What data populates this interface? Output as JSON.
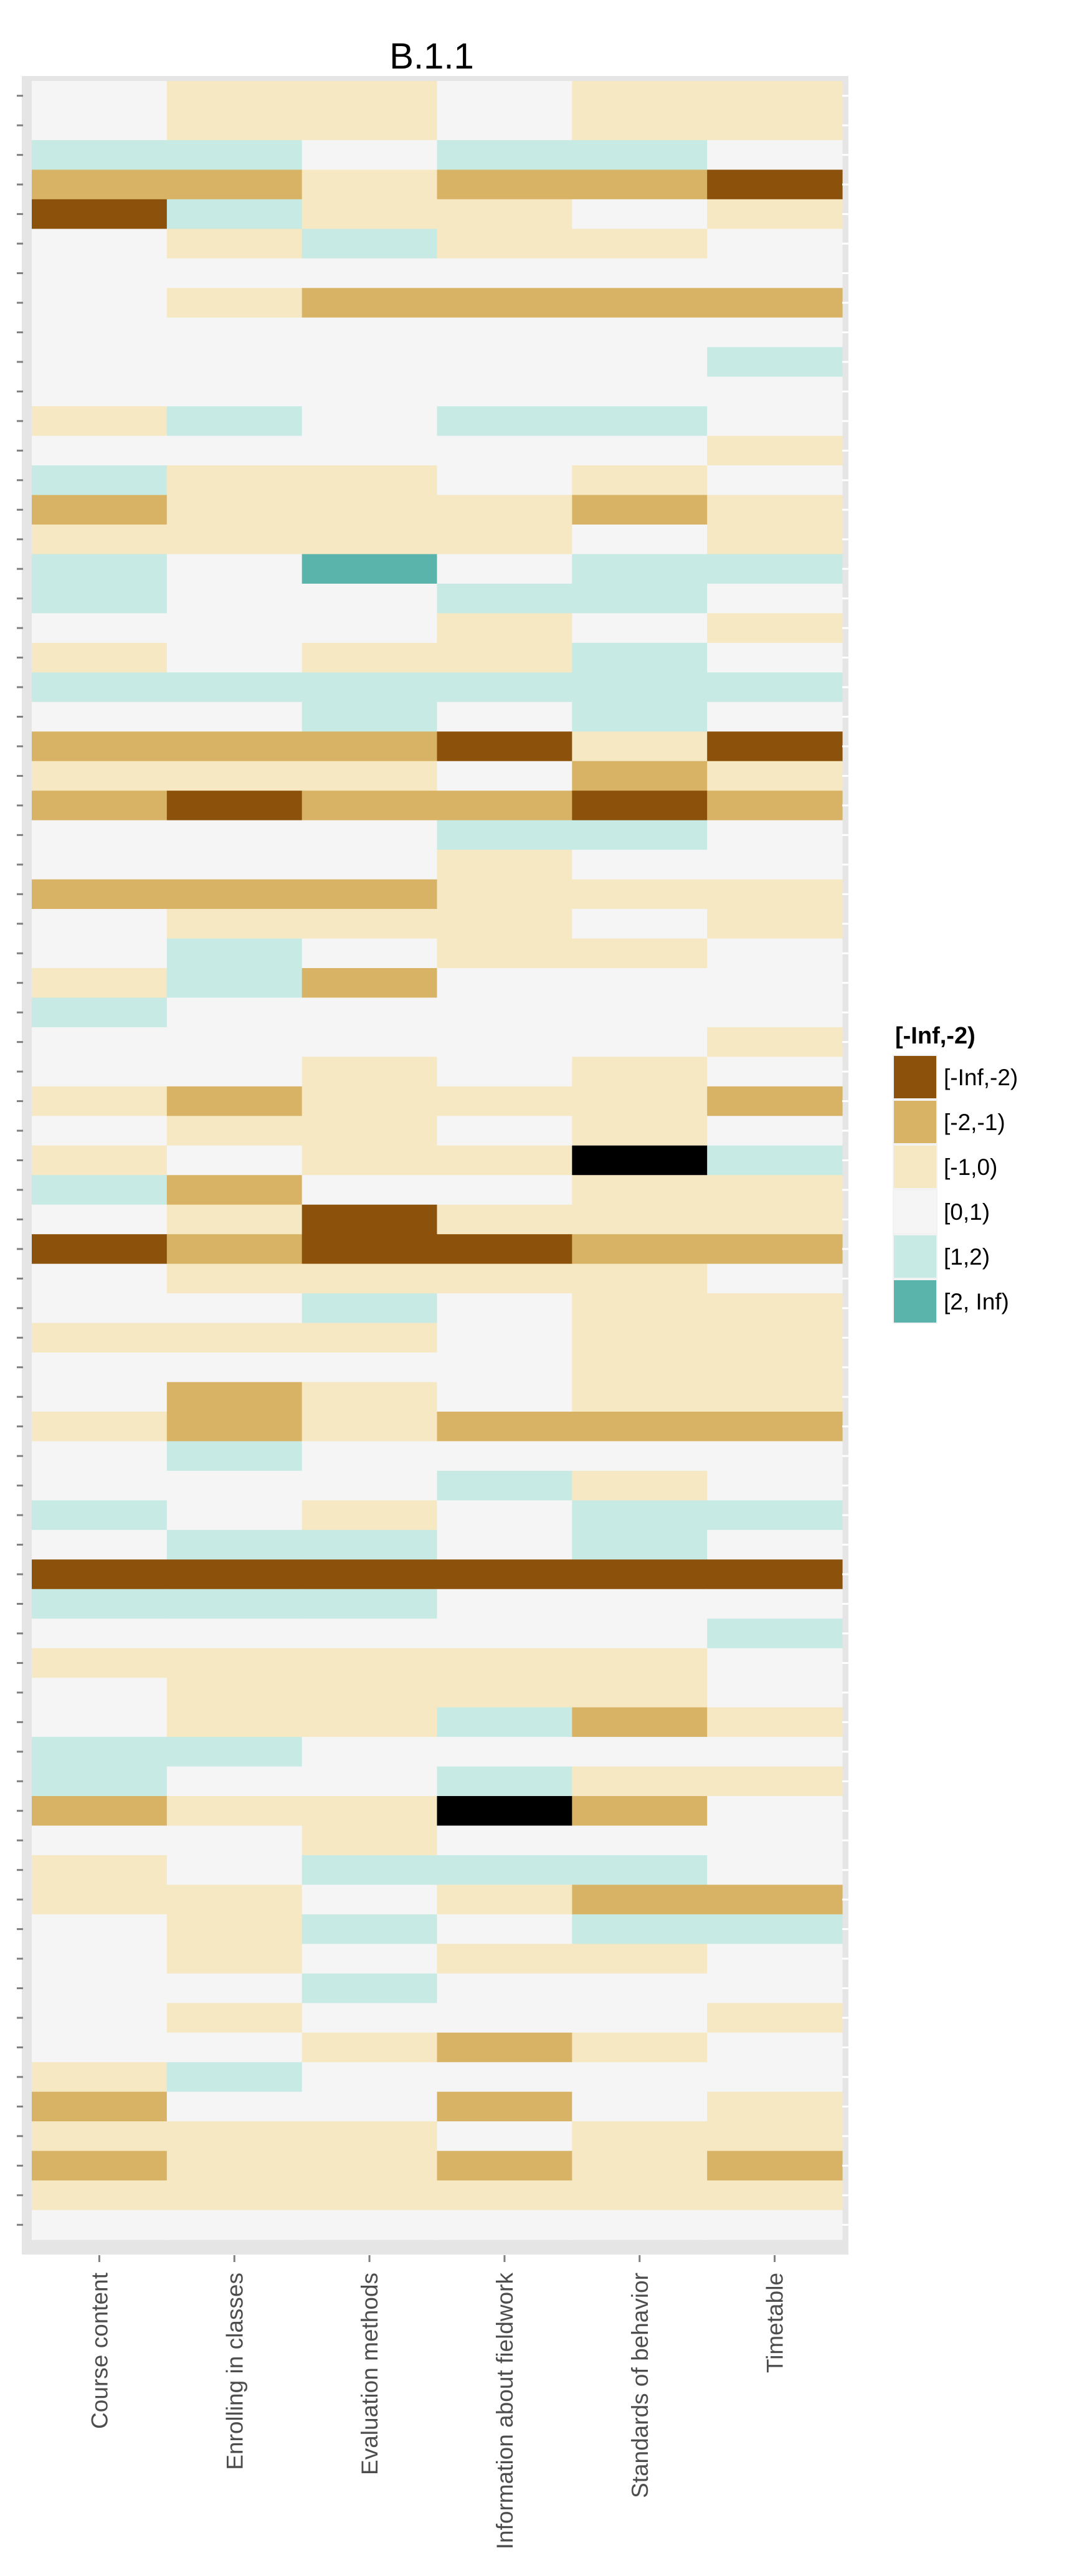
{
  "chart_data": {
    "type": "heatmap",
    "title": "B.1.1",
    "xlabel": "",
    "ylabel": "",
    "grid": true,
    "legend_position": "right",
    "categories": [
      "Course content",
      "Enrolling in classes",
      "Evaluation methods",
      "Information about fieldwork",
      "Standards of behavior",
      "Timetable"
    ],
    "bins": [
      "[-Inf,-2)",
      "[-2,-1)",
      "[-1,0)",
      "[0,1)",
      "[1,2)",
      "[2, Inf)"
    ],
    "bin_colors": [
      "#8c510a",
      "#d8b365",
      "#f6e8c3",
      "#f5f5f5",
      "#c7eae5",
      "#5ab4ac"
    ],
    "missing_color": "#000000",
    "legend": {
      "title": "[-Inf,-2)",
      "entries": [
        "[-Inf,-2)",
        "[-2,-1)",
        "[-1,0)",
        "[0,1)",
        "[1,2)",
        "[2, Inf)"
      ]
    },
    "rows": [
      [
        3,
        2,
        2,
        3,
        2,
        2
      ],
      [
        3,
        2,
        2,
        3,
        2,
        2
      ],
      [
        4,
        4,
        3,
        4,
        4,
        3
      ],
      [
        1,
        1,
        2,
        1,
        1,
        0
      ],
      [
        0,
        4,
        2,
        2,
        3,
        2
      ],
      [
        3,
        2,
        4,
        2,
        2,
        3
      ],
      [
        3,
        3,
        3,
        3,
        3,
        3
      ],
      [
        3,
        2,
        1,
        1,
        1,
        1
      ],
      [
        3,
        3,
        3,
        3,
        3,
        3
      ],
      [
        3,
        3,
        3,
        3,
        3,
        4
      ],
      [
        3,
        3,
        3,
        3,
        3,
        3
      ],
      [
        2,
        4,
        3,
        4,
        4,
        3
      ],
      [
        3,
        3,
        3,
        3,
        3,
        2
      ],
      [
        4,
        2,
        2,
        3,
        2,
        3
      ],
      [
        1,
        2,
        2,
        2,
        1,
        2
      ],
      [
        2,
        2,
        2,
        2,
        3,
        2
      ],
      [
        4,
        3,
        5,
        3,
        4,
        4
      ],
      [
        4,
        3,
        3,
        4,
        4,
        3
      ],
      [
        3,
        3,
        3,
        2,
        3,
        2
      ],
      [
        2,
        3,
        2,
        2,
        4,
        3
      ],
      [
        4,
        4,
        4,
        4,
        4,
        4
      ],
      [
        3,
        3,
        4,
        3,
        4,
        3
      ],
      [
        1,
        1,
        1,
        0,
        2,
        0
      ],
      [
        2,
        2,
        2,
        3,
        1,
        2
      ],
      [
        1,
        0,
        1,
        1,
        0,
        1
      ],
      [
        3,
        3,
        3,
        4,
        4,
        3
      ],
      [
        3,
        3,
        3,
        2,
        3,
        3
      ],
      [
        1,
        1,
        1,
        2,
        2,
        2
      ],
      [
        3,
        2,
        2,
        2,
        3,
        2
      ],
      [
        3,
        4,
        3,
        2,
        2,
        3
      ],
      [
        2,
        4,
        1,
        3,
        3,
        3
      ],
      [
        4,
        3,
        3,
        3,
        3,
        3
      ],
      [
        3,
        3,
        3,
        3,
        3,
        2
      ],
      [
        3,
        3,
        2,
        3,
        2,
        3
      ],
      [
        2,
        1,
        2,
        2,
        2,
        1
      ],
      [
        3,
        2,
        2,
        3,
        2,
        3
      ],
      [
        2,
        3,
        2,
        2,
        -1,
        4
      ],
      [
        4,
        1,
        3,
        3,
        2,
        2
      ],
      [
        3,
        2,
        0,
        2,
        2,
        2
      ],
      [
        0,
        1,
        0,
        0,
        1,
        1
      ],
      [
        3,
        2,
        2,
        2,
        2,
        3
      ],
      [
        3,
        3,
        4,
        3,
        2,
        2
      ],
      [
        2,
        2,
        2,
        3,
        2,
        2
      ],
      [
        3,
        3,
        3,
        3,
        2,
        2
      ],
      [
        3,
        1,
        2,
        3,
        2,
        2
      ],
      [
        2,
        1,
        2,
        1,
        1,
        1
      ],
      [
        3,
        4,
        3,
        3,
        3,
        3
      ],
      [
        3,
        3,
        3,
        4,
        2,
        3
      ],
      [
        4,
        3,
        2,
        3,
        4,
        4
      ],
      [
        3,
        4,
        4,
        3,
        4,
        3
      ],
      [
        0,
        0,
        0,
        0,
        0,
        0
      ],
      [
        4,
        4,
        4,
        3,
        3,
        3
      ],
      [
        3,
        3,
        3,
        3,
        3,
        4
      ],
      [
        2,
        2,
        2,
        2,
        2,
        3
      ],
      [
        3,
        2,
        2,
        2,
        2,
        3
      ],
      [
        3,
        2,
        2,
        4,
        1,
        2
      ],
      [
        4,
        4,
        3,
        3,
        3,
        3
      ],
      [
        4,
        3,
        3,
        4,
        2,
        2
      ],
      [
        1,
        2,
        2,
        -1,
        1,
        3
      ],
      [
        3,
        3,
        2,
        3,
        3,
        3
      ],
      [
        2,
        3,
        4,
        4,
        4,
        3
      ],
      [
        2,
        2,
        3,
        2,
        1,
        1
      ],
      [
        3,
        2,
        4,
        3,
        4,
        4
      ],
      [
        3,
        2,
        3,
        2,
        2,
        3
      ],
      [
        3,
        3,
        4,
        3,
        3,
        3
      ],
      [
        3,
        2,
        3,
        3,
        3,
        2
      ],
      [
        3,
        3,
        2,
        1,
        2,
        3
      ],
      [
        2,
        4,
        3,
        3,
        3,
        3
      ],
      [
        1,
        3,
        3,
        1,
        3,
        2
      ],
      [
        2,
        2,
        2,
        3,
        2,
        2
      ],
      [
        1,
        2,
        2,
        1,
        2,
        1
      ],
      [
        2,
        2,
        2,
        2,
        2,
        2
      ],
      [
        3,
        3,
        3,
        3,
        3,
        3
      ]
    ]
  }
}
